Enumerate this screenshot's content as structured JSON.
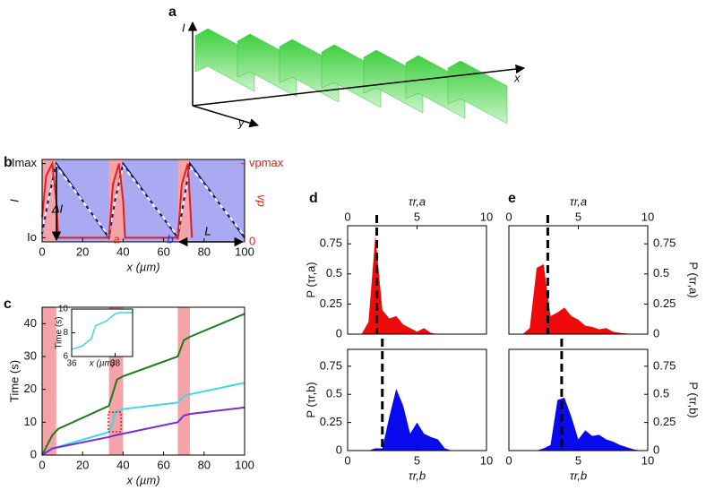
{
  "panels": [
    "a",
    "b",
    "c",
    "d",
    "e"
  ],
  "panel_a": {
    "axes": [
      "I",
      "x",
      "y"
    ]
  },
  "chart_data": [
    {
      "type": "line",
      "xlim": [
        0,
        100
      ],
      "xticks": [
        0,
        20,
        40,
        60,
        80,
        100
      ],
      "xlabel": "x (µm)",
      "ylabel": "I",
      "ylim": [
        0,
        1
      ],
      "yticks": [
        {
          "value": 0.05,
          "label": "Io"
        },
        {
          "value": 0.95,
          "label": "Imax"
        }
      ],
      "y2label": "vp",
      "y2lim": [
        0,
        1
      ],
      "y2ticks": [
        0,
        {
          "value": 0.95,
          "label": "vpmax"
        }
      ],
      "background": "#a9aaf2",
      "regions": [
        {
          "x": [
            0,
            7
          ],
          "color": "#f4a4a8"
        },
        {
          "x": [
            33,
            40
          ],
          "color": "#f4a4a8"
        },
        {
          "x": [
            67,
            73
          ],
          "color": "#f4a4a8"
        }
      ],
      "annotations": [
        "ΔI",
        "a",
        "b",
        "L"
      ],
      "series": [
        {
          "name": "intensity",
          "color": "#16166a",
          "x": [
            0,
            3,
            7,
            33,
            36,
            40,
            67,
            70,
            73,
            100
          ],
          "values": [
            0.1,
            0.5,
            0.95,
            0.05,
            0.5,
            0.95,
            0.05,
            0.5,
            0.95,
            0.05
          ]
        },
        {
          "name": "fit",
          "color": "#ffffff",
          "dash": true,
          "x": [
            0,
            3,
            7,
            33,
            36,
            40,
            67,
            70,
            73,
            100
          ],
          "values": [
            0.12,
            0.5,
            0.92,
            0.07,
            0.5,
            0.92,
            0.07,
            0.5,
            0.92,
            0.07
          ]
        },
        {
          "name": "velocity",
          "color": "#e0201c",
          "axis": "y2",
          "x": [
            0,
            2,
            5,
            7,
            8,
            33,
            35,
            38,
            40,
            41,
            67,
            69,
            72,
            73,
            74
          ],
          "values": [
            0.3,
            0.8,
            0.95,
            0.5,
            0.05,
            0.05,
            0.7,
            0.95,
            0.5,
            0.05,
            0.05,
            0.7,
            0.95,
            0.5,
            0.05
          ]
        }
      ]
    },
    {
      "type": "line",
      "xlim": [
        0,
        100
      ],
      "xticks": [
        0,
        20,
        40,
        60,
        80,
        100
      ],
      "xlabel": "x (µm)",
      "ylabel": "Time (s)",
      "ylim": [
        0,
        45
      ],
      "yticks": [
        0,
        10,
        20,
        30,
        40
      ],
      "regions": [
        {
          "x": [
            0,
            7
          ],
          "color": "#f4a4a8"
        },
        {
          "x": [
            33,
            40
          ],
          "color": "#f4a4a8"
        },
        {
          "x": [
            67,
            73
          ],
          "color": "#f4a4a8"
        }
      ],
      "series": [
        {
          "name": "green",
          "color": "#1f7a1f",
          "x": [
            0,
            5,
            8,
            33,
            35,
            37,
            40,
            67,
            70,
            73,
            100
          ],
          "values": [
            0,
            6,
            8,
            15,
            19,
            23,
            24,
            30,
            35,
            36,
            43
          ]
        },
        {
          "name": "cyan",
          "color": "#3cd6e6",
          "x": [
            0,
            5,
            33,
            35,
            36,
            40,
            67,
            70,
            73,
            100
          ],
          "values": [
            0,
            2,
            7,
            10,
            13,
            14,
            16,
            18,
            18.5,
            22
          ]
        },
        {
          "name": "purple",
          "color": "#7a2ad6",
          "x": [
            0,
            5,
            33,
            36,
            40,
            67,
            70,
            73,
            100
          ],
          "values": [
            0,
            2,
            5.5,
            6,
            6.5,
            10,
            12,
            12.5,
            14.5
          ]
        }
      ]
    },
    {
      "type": "line",
      "xlim": [
        36,
        38.8
      ],
      "xticks": [
        36,
        38
      ],
      "xlabel": "x (µm)",
      "ylabel": "Time (s)",
      "ylim": [
        6,
        10
      ],
      "yticks": [
        6,
        8,
        10
      ],
      "series": [
        {
          "name": "cyan",
          "color": "#3cd6e6",
          "x": [
            36,
            36.5,
            36.9,
            37.1,
            37.6,
            38,
            38.2,
            38.8
          ],
          "values": [
            6.6,
            6.9,
            7.5,
            8.6,
            9.0,
            9.6,
            9.7,
            9.7
          ]
        }
      ]
    },
    {
      "type": "area",
      "xaxis": "top",
      "yside": "left",
      "xlim": [
        0,
        10
      ],
      "xticks": [
        0,
        5,
        10
      ],
      "xlabel": "τr,a",
      "ylabel": "P (τr,a)",
      "ylim": [
        0,
        0.9
      ],
      "yticks": [
        0,
        0.25,
        0.5,
        0.75
      ],
      "mean": 2.1,
      "series": [
        {
          "name": "a",
          "color": "#ee0a0a",
          "x": [
            1,
            1.5,
            2,
            2.5,
            3,
            3.5,
            4,
            4.5,
            5,
            5.5,
            6,
            6.5,
            7
          ],
          "values": [
            0,
            0.1,
            0.82,
            0.2,
            0.13,
            0.15,
            0.08,
            0.05,
            0.02,
            0.05,
            0.01,
            0,
            0
          ]
        }
      ]
    },
    {
      "type": "area",
      "xaxis": "bottom",
      "yside": "left",
      "xlim": [
        0,
        10
      ],
      "xticks": [
        0,
        5,
        10
      ],
      "xlabel": "τr,b",
      "ylabel": "P (τr,b)",
      "ylim": [
        0,
        0.9
      ],
      "yticks": [
        0,
        0.25,
        0.5,
        0.75
      ],
      "mean": 2.5,
      "series": [
        {
          "name": "b",
          "color": "#0a0aee",
          "x": [
            1.5,
            2,
            2.5,
            3,
            3.5,
            4,
            4.5,
            5,
            5.5,
            6,
            6.5,
            7,
            7.5
          ],
          "values": [
            0,
            0.02,
            0.02,
            0.3,
            0.55,
            0.4,
            0.15,
            0.25,
            0.15,
            0.12,
            0.1,
            0.02,
            0
          ]
        }
      ]
    },
    {
      "type": "area",
      "xaxis": "top",
      "yside": "right",
      "xlim": [
        0,
        10
      ],
      "xticks": [
        0,
        5,
        10
      ],
      "xlabel": "τr,a",
      "ylabel": "P (τr,a)",
      "ylim": [
        0,
        0.9
      ],
      "yticks": [
        0,
        0.25,
        0.5,
        0.75
      ],
      "mean": 2.8,
      "series": [
        {
          "name": "a",
          "color": "#ee0a0a",
          "x": [
            1,
            1.5,
            2,
            2.5,
            3,
            3.5,
            4,
            4.5,
            5,
            5.5,
            6,
            6.5,
            7,
            7.5,
            8,
            9,
            10
          ],
          "values": [
            0,
            0.05,
            0.55,
            0.58,
            0.15,
            0.18,
            0.22,
            0.15,
            0.12,
            0.07,
            0.06,
            0.04,
            0.05,
            0.02,
            0.01,
            0,
            0
          ]
        }
      ]
    },
    {
      "type": "area",
      "xaxis": "bottom",
      "yside": "right",
      "xlim": [
        0,
        10
      ],
      "xticks": [
        0,
        5,
        10
      ],
      "xlabel": "τr,b",
      "ylabel": "P (τr,b)",
      "ylim": [
        0,
        0.9
      ],
      "yticks": [
        0,
        0.25,
        0.5,
        0.75
      ],
      "mean": 3.8,
      "series": [
        {
          "name": "b",
          "color": "#0a0aee",
          "x": [
            2,
            2.5,
            3,
            3.5,
            4,
            4.5,
            5,
            5.5,
            6,
            6.5,
            7,
            7.5,
            8,
            8.5,
            9,
            9.5
          ],
          "values": [
            0,
            0.02,
            0.05,
            0.45,
            0.47,
            0.3,
            0.1,
            0.18,
            0.13,
            0.14,
            0.1,
            0.08,
            0.05,
            0.03,
            0.01,
            0
          ]
        }
      ]
    }
  ]
}
